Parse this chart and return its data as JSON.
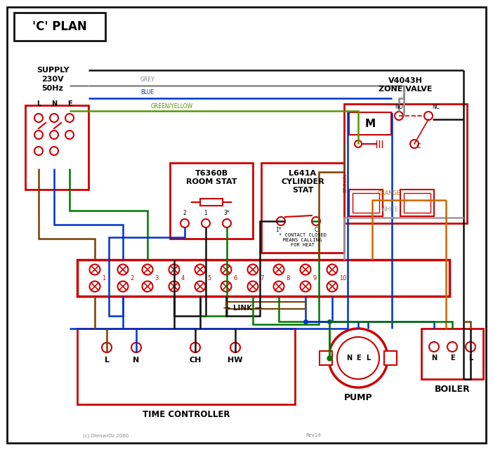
{
  "title": "'C' PLAN",
  "red": "#cc0000",
  "blue": "#0033cc",
  "green": "#007700",
  "brown": "#7B3F00",
  "grey": "#888888",
  "orange": "#cc6600",
  "black": "#111111",
  "green_yellow": "#559900",
  "white_wire": "#999999",
  "supply_text_lines": [
    "SUPPLY",
    "230V",
    "50Hz"
  ],
  "lne_labels": [
    "L",
    "N",
    "E"
  ],
  "zone_valve_title1": "V4043H",
  "zone_valve_title2": "ZONE VALVE",
  "room_stat1": "T6360B",
  "room_stat2": "ROOM STAT",
  "cyl_stat1": "L641A",
  "cyl_stat2": "CYLINDER",
  "cyl_stat3": "STAT",
  "terminal_label": "LINK",
  "time_controller_label": "TIME CONTROLLER",
  "pump_label": "PUMP",
  "boiler_label": "BOILER",
  "contact_note": "* CONTACT CLOSED\nMEANS CALLING\nFOR HEAT",
  "copyright": "(c) DienwrOz 2000",
  "revision": "Rev1d",
  "tc_terms": [
    "L",
    "N",
    "CH",
    "HW"
  ],
  "terminal_numbers": [
    "1",
    "2",
    "3",
    "4",
    "5",
    "6",
    "7",
    "8",
    "9",
    "10"
  ],
  "motor_label": "M",
  "no_label": "NO",
  "nc_label": "NC",
  "c_label": "C"
}
